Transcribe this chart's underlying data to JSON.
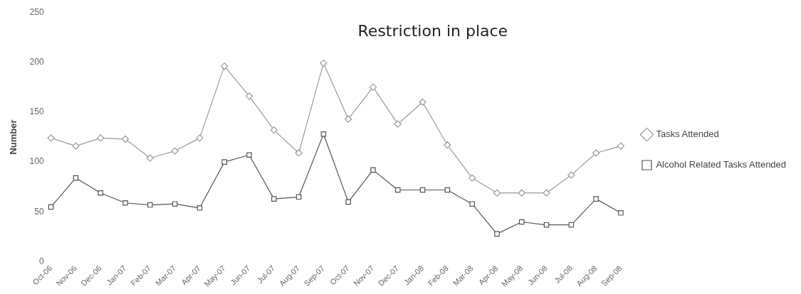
{
  "chart_data": {
    "type": "line",
    "categories": [
      "Oct-06",
      "Nov-06",
      "Dec-06",
      "Jan-07",
      "Feb-07",
      "Mar-07",
      "Apr-07",
      "May-07",
      "Jun-07",
      "Jul-07",
      "Aug-07",
      "Sep-07",
      "Oct-07",
      "Nov-07",
      "Dec-07",
      "Jan-08",
      "Feb-08",
      "Mar-08",
      "Apr-08",
      "May-08",
      "Jun-08",
      "Jul-08",
      "Aug-08",
      "Sep-08"
    ],
    "series": [
      {
        "name": "Tasks Attended",
        "color": "#9a9a9a",
        "marker": "diamond",
        "values": [
          124,
          116,
          124,
          123,
          104,
          111,
          124,
          196,
          166,
          132,
          109,
          199,
          143,
          175,
          138,
          160,
          117,
          84,
          69,
          69,
          69,
          87,
          109,
          116
        ]
      },
      {
        "name": "Alcohol Related Tasks Attended",
        "color": "#555555",
        "marker": "square",
        "values": [
          55,
          84,
          69,
          59,
          57,
          58,
          54,
          100,
          107,
          63,
          65,
          128,
          60,
          92,
          72,
          72,
          72,
          58,
          28,
          40,
          37,
          37,
          63,
          49
        ]
      }
    ],
    "ylabel": "Number",
    "ylim": [
      0,
      250
    ],
    "yticks": [
      0,
      50,
      100,
      150,
      200,
      250
    ],
    "grid": false,
    "legend": "right",
    "annotations": [
      "Restriction in place"
    ]
  }
}
